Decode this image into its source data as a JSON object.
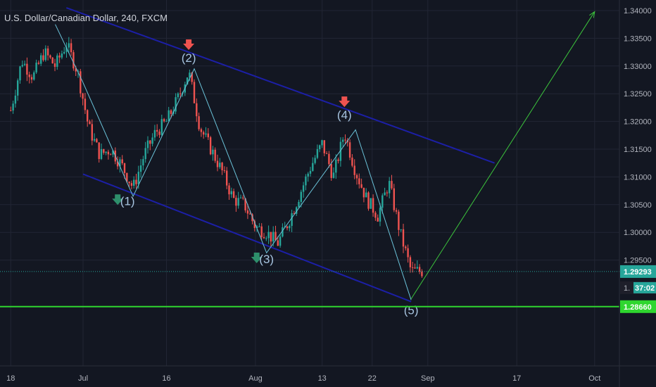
{
  "title": "U.S. Dollar/Canadian Dollar, 240, FXCM",
  "colors": {
    "background": "#131722",
    "grid": "#222634",
    "up": "#26a69a",
    "down": "#ef5350",
    "channel": "#1c1fa6",
    "wave": "#6bc3d9",
    "projection": "#3cc43c",
    "support": "#2fd62f"
  },
  "chart_data": {
    "type": "candlestick",
    "ylim": [
      1.2855,
      1.341
    ],
    "y_ticks": [
      "1.34000",
      "1.33500",
      "1.33000",
      "1.32500",
      "1.32000",
      "1.31500",
      "1.31000",
      "1.30500",
      "1.30000",
      "1.29500"
    ],
    "x_ticks": [
      "18",
      "Jul",
      "16",
      "Aug",
      "13",
      "22",
      "Sep",
      "17",
      "Oct"
    ],
    "last_price": "1.29293",
    "countdown": "37:02",
    "countdown_partial_label": "1.",
    "support_price": "1.28660",
    "price_path": [
      [
        "Jun 18",
        1.322
      ],
      [
        "Jun 20",
        1.331
      ],
      [
        "Jun 22",
        1.328
      ],
      [
        "Jun 24",
        1.3325
      ],
      [
        "Jun 26",
        1.33
      ],
      [
        "Jun 28",
        1.334
      ],
      [
        "Jun 30",
        1.329
      ],
      [
        "Jul 2",
        1.319
      ],
      [
        "Jul 4",
        1.314
      ],
      [
        "Jul 6",
        1.315
      ],
      [
        "Jul 8",
        1.312
      ],
      [
        "Jul 10",
        1.308
      ],
      [
        "Jul 12",
        1.314
      ],
      [
        "Jul 14",
        1.318
      ],
      [
        "Jul 16",
        1.32
      ],
      [
        "Jul 18",
        1.324
      ],
      [
        "Jul 20",
        1.329
      ],
      [
        "Jul 22",
        1.319
      ],
      [
        "Jul 24",
        1.315
      ],
      [
        "Jul 26",
        1.311
      ],
      [
        "Jul 28",
        1.306
      ],
      [
        "Jul 30",
        1.305
      ],
      [
        "Aug 1",
        1.301
      ],
      [
        "Aug 3",
        1.3
      ],
      [
        "Aug 5",
        1.298
      ],
      [
        "Aug 7",
        1.302
      ],
      [
        "Aug 9",
        1.307
      ],
      [
        "Aug 11",
        1.312
      ],
      [
        "Aug 13",
        1.316
      ],
      [
        "Aug 15",
        1.31
      ],
      [
        "Aug 17",
        1.318
      ],
      [
        "Aug 19",
        1.311
      ],
      [
        "Aug 21",
        1.306
      ],
      [
        "Aug 23",
        1.303
      ],
      [
        "Aug 25",
        1.309
      ],
      [
        "Aug 27",
        1.3
      ],
      [
        "Aug 29",
        1.293
      ],
      [
        "Aug 31",
        1.293
      ]
    ],
    "channel_upper": [
      [
        "Jun 28",
        1.3405
      ],
      [
        "Sep 13",
        1.3125
      ]
    ],
    "channel_lower": [
      [
        "Jul 1",
        1.3105
      ],
      [
        "Aug 29",
        1.2875
      ]
    ],
    "wave_path": [
      [
        "Jun 26",
        1.3375
      ],
      [
        "Jul 1",
        1.327
      ],
      [
        "Jul 10",
        1.3065
      ],
      [
        "Jul 21",
        1.3295
      ],
      [
        "Aug 3",
        1.2963
      ],
      [
        "Aug 19",
        1.3185
      ],
      [
        "Aug 29",
        1.2878
      ]
    ],
    "projection": [
      [
        "Aug 29",
        1.288
      ],
      [
        "Oct 1",
        1.3398
      ]
    ],
    "wave_labels": [
      {
        "text": "(1)",
        "date": "Jul 9",
        "price": 1.3057,
        "arrow": "up"
      },
      {
        "text": "(2)",
        "date": "Jul 20",
        "price": 1.3315,
        "arrow": "down"
      },
      {
        "text": "(3)",
        "date": "Aug 3",
        "price": 1.2952,
        "arrow": "up"
      },
      {
        "text": "(4)",
        "date": "Aug 17",
        "price": 1.3212,
        "arrow": "down"
      },
      {
        "text": "(5)",
        "date": "Aug 29",
        "price": 1.286,
        "arrow": "none"
      }
    ]
  }
}
